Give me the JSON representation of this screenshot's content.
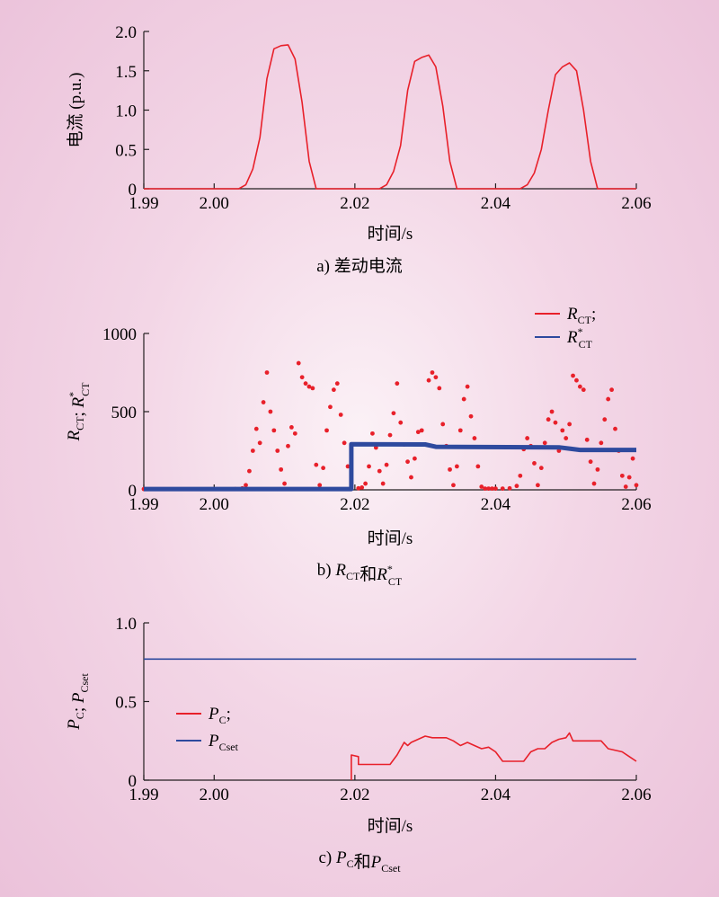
{
  "chart_data": [
    {
      "id": "a",
      "type": "line",
      "caption": "a) 差动电流",
      "xlabel": "时间/s",
      "ylabel": "电流 (p.u.)",
      "xlim": [
        1.99,
        2.06
      ],
      "ylim": [
        0,
        2.0
      ],
      "xticks": [
        "1.99",
        "2.00",
        "2.02",
        "2.04",
        "2.06"
      ],
      "yticks": [
        "0",
        "0.5",
        "1.0",
        "1.5",
        "2.0"
      ],
      "series": [
        {
          "color": "#e8202a",
          "x": [
            1.99,
            2.0035,
            2.0045,
            2.0055,
            2.0065,
            2.0075,
            2.0085,
            2.0095,
            2.0105,
            2.0115,
            2.0125,
            2.0135,
            2.0145,
            2.0235,
            2.0245,
            2.0255,
            2.0265,
            2.0275,
            2.0285,
            2.0295,
            2.0305,
            2.0315,
            2.0325,
            2.0335,
            2.0345,
            2.0435,
            2.0445,
            2.0455,
            2.0465,
            2.0475,
            2.0485,
            2.0495,
            2.0505,
            2.0515,
            2.0525,
            2.0535,
            2.0545,
            2.06
          ],
          "y": [
            0,
            0,
            0.05,
            0.25,
            0.65,
            1.4,
            1.78,
            1.82,
            1.83,
            1.65,
            1.1,
            0.35,
            0,
            0,
            0.05,
            0.22,
            0.55,
            1.25,
            1.62,
            1.67,
            1.7,
            1.55,
            1.05,
            0.35,
            0,
            0,
            0.05,
            0.2,
            0.5,
            1.0,
            1.45,
            1.55,
            1.6,
            1.5,
            1.0,
            0.35,
            0,
            0
          ]
        }
      ]
    },
    {
      "id": "b",
      "type": "scatter",
      "caption": "b) R_CT和R*_CT",
      "xlabel": "时间/s",
      "ylabel": "R_CT; R*_CT",
      "xlim": [
        1.99,
        2.06
      ],
      "ylim": [
        0,
        1000
      ],
      "xticks": [
        "1.99",
        "2.00",
        "2.02",
        "2.04",
        "2.06"
      ],
      "yticks": [
        "0",
        "500",
        "1000"
      ],
      "legend": [
        {
          "base": "R",
          "sub": "CT",
          "sup": "",
          "suffix": ";",
          "color": "#e8202a"
        },
        {
          "base": "R",
          "sub": "CT",
          "sup": "*",
          "suffix": "",
          "color": "#2e4a9e"
        }
      ],
      "series": [
        {
          "color": "#e8202a",
          "style": "dots",
          "x": [
            1.99,
            2.003,
            2.004,
            2.0045,
            2.005,
            2.0055,
            2.006,
            2.0065,
            2.007,
            2.0075,
            2.008,
            2.0085,
            2.009,
            2.0095,
            2.01,
            2.0105,
            2.011,
            2.0115,
            2.012,
            2.0125,
            2.013,
            2.0135,
            2.014,
            2.0145,
            2.015,
            2.0155,
            2.016,
            2.0165,
            2.017,
            2.0175,
            2.018,
            2.0185,
            2.019,
            2.0195,
            2.0205,
            2.021,
            2.0215,
            2.022,
            2.0225,
            2.023,
            2.0235,
            2.024,
            2.0245,
            2.025,
            2.0255,
            2.026,
            2.0265,
            2.027,
            2.0275,
            2.028,
            2.0285,
            2.029,
            2.0295,
            2.03,
            2.0305,
            2.031,
            2.0315,
            2.032,
            2.0325,
            2.033,
            2.0335,
            2.034,
            2.0345,
            2.035,
            2.0355,
            2.036,
            2.0365,
            2.037,
            2.0375,
            2.038,
            2.0385,
            2.039,
            2.0395,
            2.04,
            2.041,
            2.042,
            2.043,
            2.0435,
            2.044,
            2.0445,
            2.045,
            2.0455,
            2.046,
            2.0465,
            2.047,
            2.0475,
            2.048,
            2.0485,
            2.049,
            2.0495,
            2.05,
            2.0505,
            2.051,
            2.0515,
            2.052,
            2.0525,
            2.053,
            2.0535,
            2.054,
            2.0545,
            2.055,
            2.0555,
            2.056,
            2.0565,
            2.057,
            2.0575,
            2.058,
            2.0585,
            2.059,
            2.0595,
            2.06
          ],
          "y": [
            5,
            5,
            10,
            30,
            120,
            250,
            390,
            300,
            560,
            750,
            500,
            380,
            250,
            130,
            40,
            280,
            400,
            360,
            810,
            720,
            680,
            660,
            650,
            160,
            30,
            140,
            380,
            530,
            640,
            680,
            480,
            300,
            150,
            25,
            10,
            15,
            40,
            150,
            360,
            270,
            120,
            40,
            160,
            350,
            490,
            680,
            430,
            290,
            180,
            80,
            200,
            370,
            380,
            290,
            700,
            750,
            720,
            650,
            420,
            280,
            130,
            30,
            150,
            380,
            580,
            660,
            470,
            330,
            150,
            20,
            8,
            8,
            8,
            8,
            8,
            10,
            25,
            90,
            260,
            330,
            280,
            170,
            30,
            140,
            300,
            450,
            500,
            430,
            250,
            380,
            330,
            420,
            730,
            700,
            660,
            640,
            320,
            180,
            40,
            130,
            300,
            450,
            580,
            640,
            390,
            250,
            90,
            20,
            80,
            200,
            30
          ]
        },
        {
          "color": "#2e4a9e",
          "style": "thick",
          "x": [
            1.99,
            2.0195,
            2.0195,
            2.03,
            2.0315,
            2.049,
            2.052,
            2.06
          ],
          "y": [
            5,
            5,
            292,
            290,
            275,
            272,
            255,
            255
          ]
        }
      ]
    },
    {
      "id": "c",
      "type": "line",
      "caption": "c) P_C和P_Cset",
      "xlabel": "时间/s",
      "ylabel": "P_C; P_Cset",
      "xlim": [
        1.99,
        2.06
      ],
      "ylim": [
        0,
        1.0
      ],
      "xticks": [
        "1.99",
        "2.00",
        "2.02",
        "2.04",
        "2.06"
      ],
      "yticks": [
        "0",
        "0.5",
        "1.0"
      ],
      "legend": [
        {
          "base": "P",
          "sub": "C",
          "sup": "",
          "suffix": ";",
          "color": "#e8202a"
        },
        {
          "base": "P",
          "sub": "Cset",
          "sup": "",
          "suffix": "",
          "color": "#2e4a9e"
        }
      ],
      "series": [
        {
          "color": "#2e4a9e",
          "style": "line",
          "x": [
            1.99,
            2.06
          ],
          "y": [
            0.77,
            0.77
          ]
        },
        {
          "color": "#e8202a",
          "style": "line",
          "x": [
            2.0195,
            2.0195,
            2.0205,
            2.0205,
            2.025,
            2.026,
            2.027,
            2.0275,
            2.028,
            2.029,
            2.03,
            2.031,
            2.033,
            2.034,
            2.035,
            2.036,
            2.037,
            2.038,
            2.039,
            2.04,
            2.041,
            2.044,
            2.045,
            2.046,
            2.047,
            2.048,
            2.049,
            2.05,
            2.0505,
            2.051,
            2.055,
            2.056,
            2.058,
            2.059,
            2.06
          ],
          "y": [
            0,
            0.16,
            0.15,
            0.1,
            0.1,
            0.16,
            0.24,
            0.22,
            0.24,
            0.26,
            0.28,
            0.27,
            0.27,
            0.25,
            0.22,
            0.24,
            0.22,
            0.2,
            0.21,
            0.18,
            0.12,
            0.12,
            0.18,
            0.2,
            0.2,
            0.24,
            0.26,
            0.27,
            0.3,
            0.25,
            0.25,
            0.2,
            0.18,
            0.15,
            0.12
          ]
        }
      ]
    }
  ]
}
